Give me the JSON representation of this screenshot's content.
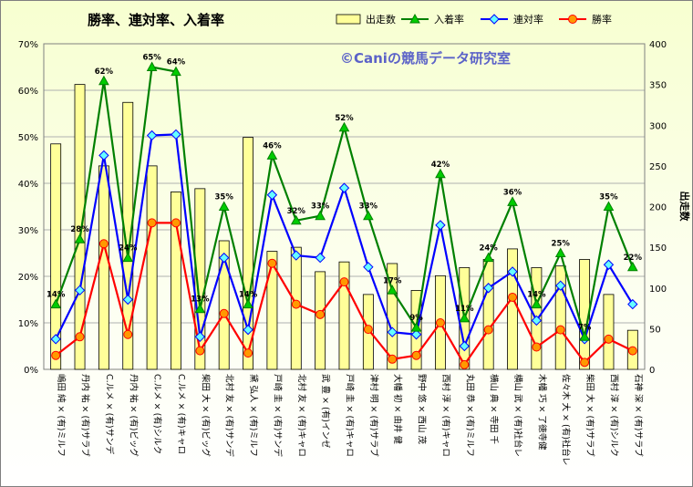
{
  "chart_data": {
    "type": "bar+line",
    "title": "勝率、連対率、入着率",
    "watermark": "©Caniの競馬データ研究室",
    "y_left": {
      "ticks": [
        "0%",
        "10%",
        "20%",
        "30%",
        "40%",
        "50%",
        "60%",
        "70%"
      ],
      "range": [
        0,
        70
      ]
    },
    "y_right": {
      "label": "出走数",
      "ticks": [
        "0",
        "50",
        "100",
        "150",
        "200",
        "250",
        "300",
        "350",
        "400"
      ],
      "range": [
        0,
        400
      ]
    },
    "grid": "horizontal",
    "legend": "top-right",
    "categories": [
      "嶋田 純 × (有)ミルフ",
      "丹内 祐 × (有)サラブ",
      "C.ルメ × (有)サンデ",
      "丹内 祐 × (有)ビッグ",
      "C.ルメ × (有)シルク",
      "C.ルメ × (有)キャロ",
      "柴田 大 × (有)ビッグ",
      "北村 友 × (有)サンデ",
      "黛 弘人 × (有)ミルフ",
      "戸崎 圭 × (有)サンデ",
      "北村 友 × (有)キャロ",
      "武 豊 × (有)インゼ",
      "戸崎 圭 × (有)キャロ",
      "津村 明 × (有)サラブ",
      "大幡 初 × 由井 健",
      "野中 悠 × 西山 茂",
      "西村 淳 × (有)キャロ",
      "丸田 恭 × (有)ミルフ",
      "横山 典 × 寺田 千",
      "横山 武 × (有)社台レ",
      "木幡 巧 × 了徳寺健",
      "佐々木 大 × (有)社台レ",
      "柴田 大 × (有)サラブ",
      "西村 淳 × (有)シルク",
      "石神 深 × (有)サラブ"
    ],
    "series": [
      {
        "name": "出走数",
        "type": "bar",
        "axis": "right",
        "color": "#ffff99",
        "values": [
          277,
          350,
          250,
          328,
          250,
          218,
          222,
          158,
          285,
          145,
          150,
          120,
          132,
          92,
          130,
          97,
          115,
          125,
          135,
          148,
          125,
          127,
          135,
          92,
          48
        ]
      },
      {
        "name": "入着率",
        "type": "line",
        "axis": "left",
        "color": "#008000",
        "values": [
          14,
          28,
          62,
          24,
          65,
          64,
          13,
          35,
          14,
          46,
          32,
          33,
          52,
          33,
          17,
          9,
          42,
          11,
          24,
          36,
          14,
          25,
          7,
          35,
          22
        ],
        "data_labels": [
          "14%",
          "28%",
          "62%",
          "24%",
          "65%",
          "64%",
          "13%",
          "35%",
          "14%",
          "46%",
          "32%",
          "33%",
          "52%",
          "33%",
          "17%",
          "9%",
          "42%",
          "11%",
          "24%",
          "36%",
          "14%",
          "25%",
          "7%",
          "35%",
          "22%"
        ]
      },
      {
        "name": "連対率",
        "type": "line",
        "axis": "left",
        "color": "#0000ff",
        "values": [
          6.5,
          17,
          46,
          15,
          50.3,
          50.5,
          7,
          24,
          8.5,
          37.5,
          24.5,
          24,
          39,
          22,
          8,
          7.5,
          31,
          5,
          17.5,
          21,
          10.5,
          18,
          6.5,
          22.5,
          14
        ]
      },
      {
        "name": "勝率",
        "type": "line",
        "axis": "left",
        "color": "#ff0000",
        "values": [
          3,
          7,
          27,
          7.5,
          31.5,
          31.5,
          4,
          12,
          3.5,
          22.8,
          14,
          11.8,
          18.8,
          8.6,
          2.2,
          3,
          10,
          1,
          8.5,
          15.5,
          4.8,
          8.5,
          1.5,
          6.5,
          4
        ]
      }
    ]
  }
}
